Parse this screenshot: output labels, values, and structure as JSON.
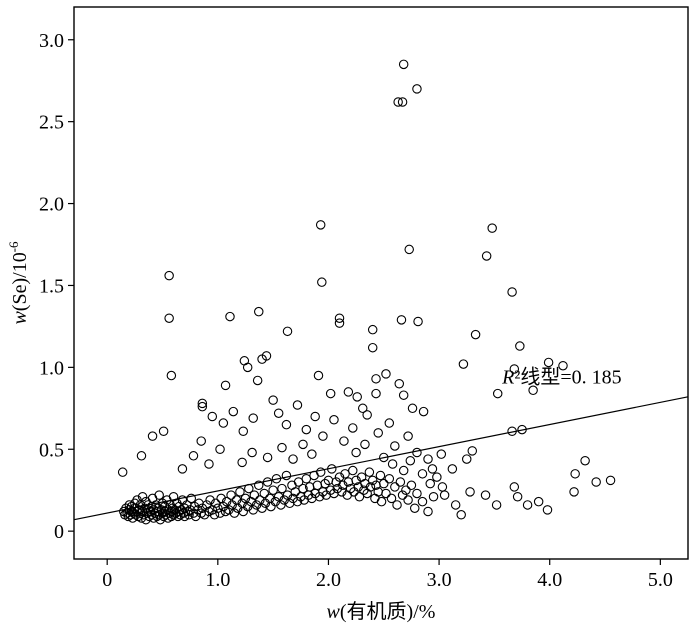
{
  "chart_data": {
    "type": "scatter",
    "xlabel": "w(有机质)/%",
    "ylabel": "w(Se)/10-6",
    "xlabel_parts": {
      "italic": "w",
      "rest": "(有机质)/%"
    },
    "ylabel_parts": {
      "italic": "w",
      "rest": "(Se)/10",
      "sup": "-6"
    },
    "xlim": [
      -0.3,
      5.25
    ],
    "ylim": [
      -0.17,
      3.2
    ],
    "x_ticks": [
      0,
      1,
      2,
      3,
      4,
      5
    ],
    "x_tick_labels": [
      "0",
      "1.0",
      "2.0",
      "3.0",
      "4.0",
      "5.0"
    ],
    "y_ticks": [
      0,
      0.5,
      1.0,
      1.5,
      2.0,
      2.5,
      3.0
    ],
    "y_tick_labels": [
      "0",
      "0.5",
      "1.0",
      "1.5",
      "2.0",
      "2.5",
      "3.0"
    ],
    "grid": false,
    "marker": "open-circle",
    "marker_color": "#000000",
    "line_color": "#000000",
    "fit_line": {
      "x": [
        -0.3,
        5.25
      ],
      "y": [
        0.07,
        0.82
      ]
    },
    "annotation": {
      "italic": "R",
      "rest": "²线型=0. 185",
      "x": 4.65,
      "y": 0.9
    },
    "annotation_text": "R²线型=0. 185",
    "points_dense": [
      [
        0.15,
        0.12
      ],
      [
        0.16,
        0.1
      ],
      [
        0.17,
        0.14
      ],
      [
        0.18,
        0.11
      ],
      [
        0.19,
        0.09
      ],
      [
        0.2,
        0.13
      ],
      [
        0.2,
        0.16
      ],
      [
        0.21,
        0.1
      ],
      [
        0.22,
        0.12
      ],
      [
        0.22,
        0.15
      ],
      [
        0.23,
        0.08
      ],
      [
        0.24,
        0.11
      ],
      [
        0.25,
        0.14
      ],
      [
        0.25,
        0.17
      ],
      [
        0.26,
        0.1
      ],
      [
        0.27,
        0.12
      ],
      [
        0.27,
        0.19
      ],
      [
        0.28,
        0.09
      ],
      [
        0.29,
        0.13
      ],
      [
        0.3,
        0.11
      ],
      [
        0.3,
        0.16
      ],
      [
        0.31,
        0.08
      ],
      [
        0.32,
        0.12
      ],
      [
        0.32,
        0.21
      ],
      [
        0.33,
        0.1
      ],
      [
        0.34,
        0.14
      ],
      [
        0.35,
        0.07
      ],
      [
        0.35,
        0.18
      ],
      [
        0.36,
        0.11
      ],
      [
        0.37,
        0.13
      ],
      [
        0.37,
        0.16
      ],
      [
        0.38,
        0.09
      ],
      [
        0.39,
        0.12
      ],
      [
        0.4,
        0.1
      ],
      [
        0.4,
        0.15
      ],
      [
        0.41,
        0.2
      ],
      [
        0.42,
        0.08
      ],
      [
        0.42,
        0.13
      ],
      [
        0.43,
        0.11
      ],
      [
        0.44,
        0.16
      ],
      [
        0.45,
        0.09
      ],
      [
        0.45,
        0.12
      ],
      [
        0.46,
        0.14
      ],
      [
        0.47,
        0.1
      ],
      [
        0.47,
        0.22
      ],
      [
        0.48,
        0.07
      ],
      [
        0.49,
        0.13
      ],
      [
        0.5,
        0.11
      ],
      [
        0.5,
        0.17
      ],
      [
        0.51,
        0.09
      ],
      [
        0.52,
        0.12
      ],
      [
        0.52,
        0.15
      ],
      [
        0.53,
        0.1
      ],
      [
        0.54,
        0.19
      ],
      [
        0.55,
        0.08
      ],
      [
        0.55,
        0.13
      ],
      [
        0.56,
        0.11
      ],
      [
        0.57,
        0.16
      ],
      [
        0.58,
        0.09
      ],
      [
        0.58,
        0.12
      ],
      [
        0.59,
        0.14
      ],
      [
        0.6,
        0.1
      ],
      [
        0.6,
        0.21
      ],
      [
        0.61,
        0.13
      ],
      [
        0.62,
        0.11
      ],
      [
        0.63,
        0.17
      ],
      [
        0.64,
        0.09
      ],
      [
        0.65,
        0.12
      ],
      [
        0.65,
        0.15
      ],
      [
        0.66,
        0.1
      ],
      [
        0.67,
        0.13
      ],
      [
        0.68,
        0.19
      ],
      [
        0.69,
        0.11
      ],
      [
        0.7,
        0.14
      ],
      [
        0.7,
        0.09
      ],
      [
        0.72,
        0.16
      ],
      [
        0.73,
        0.12
      ],
      [
        0.74,
        0.1
      ],
      [
        0.75,
        0.13
      ],
      [
        0.76,
        0.2
      ],
      [
        0.78,
        0.11
      ],
      [
        0.79,
        0.15
      ],
      [
        0.8,
        0.09
      ],
      [
        0.82,
        0.13
      ],
      [
        0.83,
        0.17
      ],
      [
        0.85,
        0.11
      ],
      [
        0.86,
        0.14
      ],
      [
        0.88,
        0.1
      ],
      [
        0.9,
        0.16
      ],
      [
        0.92,
        0.12
      ],
      [
        0.93,
        0.19
      ],
      [
        0.95,
        0.13
      ],
      [
        0.97,
        0.1
      ],
      [
        0.98,
        0.17
      ],
      [
        1.0,
        0.14
      ],
      [
        1.02,
        0.11
      ],
      [
        1.03,
        0.2
      ],
      [
        1.05,
        0.15
      ],
      [
        1.07,
        0.12
      ],
      [
        1.08,
        0.18
      ],
      [
        1.1,
        0.13
      ],
      [
        1.12,
        0.22
      ],
      [
        1.13,
        0.16
      ],
      [
        1.15,
        0.11
      ],
      [
        1.17,
        0.19
      ],
      [
        1.18,
        0.14
      ],
      [
        1.2,
        0.24
      ],
      [
        1.22,
        0.17
      ],
      [
        1.23,
        0.12
      ],
      [
        1.25,
        0.2
      ],
      [
        1.27,
        0.15
      ],
      [
        1.28,
        0.26
      ],
      [
        1.3,
        0.18
      ],
      [
        1.32,
        0.13
      ],
      [
        1.33,
        0.22
      ],
      [
        1.35,
        0.16
      ],
      [
        1.37,
        0.28
      ],
      [
        1.38,
        0.19
      ],
      [
        1.4,
        0.14
      ],
      [
        1.42,
        0.23
      ],
      [
        1.43,
        0.17
      ],
      [
        1.45,
        0.3
      ],
      [
        1.47,
        0.2
      ],
      [
        1.48,
        0.15
      ],
      [
        1.5,
        0.25
      ],
      [
        1.52,
        0.18
      ],
      [
        1.53,
        0.32
      ],
      [
        1.55,
        0.21
      ],
      [
        1.57,
        0.16
      ],
      [
        1.58,
        0.26
      ],
      [
        1.6,
        0.19
      ],
      [
        1.62,
        0.34
      ],
      [
        1.63,
        0.22
      ],
      [
        1.65,
        0.17
      ],
      [
        1.67,
        0.28
      ],
      [
        1.68,
        0.2
      ],
      [
        1.7,
        0.24
      ],
      [
        1.72,
        0.18
      ],
      [
        1.73,
        0.3
      ],
      [
        1.75,
        0.21
      ],
      [
        1.77,
        0.26
      ],
      [
        1.78,
        0.19
      ],
      [
        1.8,
        0.32
      ],
      [
        1.82,
        0.22
      ],
      [
        1.83,
        0.27
      ],
      [
        1.85,
        0.2
      ],
      [
        1.87,
        0.34
      ],
      [
        1.88,
        0.23
      ],
      [
        1.9,
        0.28
      ],
      [
        1.92,
        0.21
      ],
      [
        1.93,
        0.36
      ],
      [
        1.95,
        0.24
      ],
      [
        1.97,
        0.29
      ],
      [
        1.98,
        0.22
      ],
      [
        2.0,
        0.31
      ],
      [
        2.02,
        0.25
      ],
      [
        2.03,
        0.38
      ],
      [
        2.05,
        0.23
      ],
      [
        2.07,
        0.3
      ],
      [
        2.08,
        0.26
      ],
      [
        2.1,
        0.33
      ],
      [
        2.12,
        0.24
      ],
      [
        2.13,
        0.28
      ],
      [
        2.15,
        0.35
      ],
      [
        2.17,
        0.22
      ],
      [
        2.18,
        0.3
      ],
      [
        2.2,
        0.26
      ],
      [
        2.22,
        0.37
      ],
      [
        2.23,
        0.24
      ],
      [
        2.25,
        0.31
      ],
      [
        2.27,
        0.27
      ],
      [
        2.28,
        0.21
      ],
      [
        2.3,
        0.33
      ],
      [
        2.32,
        0.25
      ],
      [
        2.33,
        0.29
      ],
      [
        2.35,
        0.23
      ],
      [
        2.37,
        0.36
      ],
      [
        2.38,
        0.27
      ],
      [
        2.4,
        0.31
      ],
      [
        2.42,
        0.2
      ],
      [
        2.43,
        0.28
      ],
      [
        2.45,
        0.24
      ],
      [
        2.47,
        0.34
      ],
      [
        2.48,
        0.18
      ],
      [
        2.5,
        0.29
      ],
      [
        2.52,
        0.23
      ],
      [
        2.55,
        0.32
      ],
      [
        2.57,
        0.2
      ],
      [
        2.6,
        0.27
      ],
      [
        2.62,
        0.16
      ],
      [
        2.65,
        0.3
      ],
      [
        2.67,
        0.22
      ],
      [
        2.7,
        0.25
      ],
      [
        2.72,
        0.19
      ],
      [
        2.75,
        0.28
      ],
      [
        2.78,
        0.14
      ],
      [
        2.8,
        0.23
      ],
      [
        2.85,
        0.18
      ],
      [
        2.9,
        0.12
      ],
      [
        2.95,
        0.21
      ]
    ],
    "points_outlier": [
      [
        2.68,
        2.85
      ],
      [
        2.63,
        2.62
      ],
      [
        2.67,
        2.62
      ],
      [
        2.8,
        2.7
      ],
      [
        1.93,
        1.87
      ],
      [
        1.94,
        1.52
      ],
      [
        0.56,
        1.56
      ],
      [
        0.56,
        1.3
      ],
      [
        0.58,
        0.95
      ],
      [
        2.73,
        1.72
      ],
      [
        3.48,
        1.85
      ],
      [
        3.43,
        1.68
      ],
      [
        3.66,
        1.46
      ],
      [
        1.11,
        1.31
      ],
      [
        1.37,
        1.34
      ],
      [
        1.63,
        1.22
      ],
      [
        2.1,
        1.3
      ],
      [
        2.1,
        1.27
      ],
      [
        2.66,
        1.29
      ],
      [
        2.81,
        1.28
      ],
      [
        2.4,
        1.23
      ],
      [
        2.4,
        1.12
      ],
      [
        3.33,
        1.2
      ],
      [
        3.73,
        1.13
      ],
      [
        3.22,
        1.02
      ],
      [
        3.68,
        0.99
      ],
      [
        3.53,
        0.84
      ],
      [
        3.99,
        1.03
      ],
      [
        4.12,
        1.01
      ],
      [
        3.85,
        0.86
      ],
      [
        1.24,
        1.04
      ],
      [
        1.4,
        1.05
      ],
      [
        1.44,
        1.07
      ],
      [
        1.27,
        1.0
      ],
      [
        1.36,
        0.92
      ],
      [
        1.07,
        0.89
      ],
      [
        0.86,
        0.78
      ],
      [
        0.86,
        0.76
      ],
      [
        1.91,
        0.95
      ],
      [
        2.43,
        0.93
      ],
      [
        2.43,
        0.84
      ],
      [
        2.52,
        0.96
      ],
      [
        2.64,
        0.9
      ],
      [
        2.68,
        0.83
      ],
      [
        2.02,
        0.84
      ],
      [
        2.18,
        0.85
      ],
      [
        2.26,
        0.82
      ],
      [
        2.31,
        0.75
      ],
      [
        2.76,
        0.75
      ],
      [
        2.86,
        0.73
      ],
      [
        0.31,
        0.46
      ],
      [
        0.41,
        0.58
      ],
      [
        0.51,
        0.61
      ],
      [
        0.14,
        0.36
      ],
      [
        0.85,
        0.55
      ],
      [
        0.95,
        0.7
      ],
      [
        1.05,
        0.66
      ],
      [
        1.14,
        0.73
      ],
      [
        1.23,
        0.61
      ],
      [
        1.32,
        0.69
      ],
      [
        1.5,
        0.8
      ],
      [
        1.55,
        0.72
      ],
      [
        1.62,
        0.65
      ],
      [
        1.72,
        0.77
      ],
      [
        1.8,
        0.62
      ],
      [
        1.88,
        0.7
      ],
      [
        1.95,
        0.58
      ],
      [
        2.05,
        0.68
      ],
      [
        2.14,
        0.55
      ],
      [
        2.22,
        0.63
      ],
      [
        2.35,
        0.71
      ],
      [
        2.45,
        0.6
      ],
      [
        2.55,
        0.66
      ],
      [
        2.6,
        0.52
      ],
      [
        2.72,
        0.58
      ],
      [
        2.8,
        0.48
      ],
      [
        2.9,
        0.44
      ],
      [
        3.02,
        0.47
      ],
      [
        3.12,
        0.38
      ],
      [
        3.25,
        0.44
      ],
      [
        3.3,
        0.49
      ],
      [
        3.28,
        0.24
      ],
      [
        3.42,
        0.22
      ],
      [
        3.52,
        0.16
      ],
      [
        3.68,
        0.27
      ],
      [
        3.71,
        0.21
      ],
      [
        3.66,
        0.61
      ],
      [
        3.75,
        0.62
      ],
      [
        3.8,
        0.16
      ],
      [
        3.9,
        0.18
      ],
      [
        3.98,
        0.13
      ],
      [
        4.22,
        0.24
      ],
      [
        4.23,
        0.35
      ],
      [
        4.32,
        0.43
      ],
      [
        4.42,
        0.3
      ],
      [
        4.55,
        0.31
      ],
      [
        3.05,
        0.22
      ],
      [
        3.15,
        0.16
      ],
      [
        3.2,
        0.1
      ],
      [
        2.98,
        0.33
      ],
      [
        3.03,
        0.27
      ],
      [
        2.94,
        0.38
      ],
      [
        1.22,
        0.42
      ],
      [
        1.31,
        0.48
      ],
      [
        1.45,
        0.45
      ],
      [
        1.58,
        0.51
      ],
      [
        1.68,
        0.44
      ],
      [
        1.77,
        0.53
      ],
      [
        1.85,
        0.47
      ],
      [
        0.68,
        0.38
      ],
      [
        0.78,
        0.46
      ],
      [
        0.92,
        0.41
      ],
      [
        1.02,
        0.5
      ],
      [
        2.25,
        0.48
      ],
      [
        2.33,
        0.53
      ],
      [
        2.5,
        0.45
      ],
      [
        2.58,
        0.41
      ],
      [
        2.68,
        0.37
      ],
      [
        2.74,
        0.43
      ],
      [
        2.85,
        0.35
      ],
      [
        2.92,
        0.29
      ]
    ]
  }
}
